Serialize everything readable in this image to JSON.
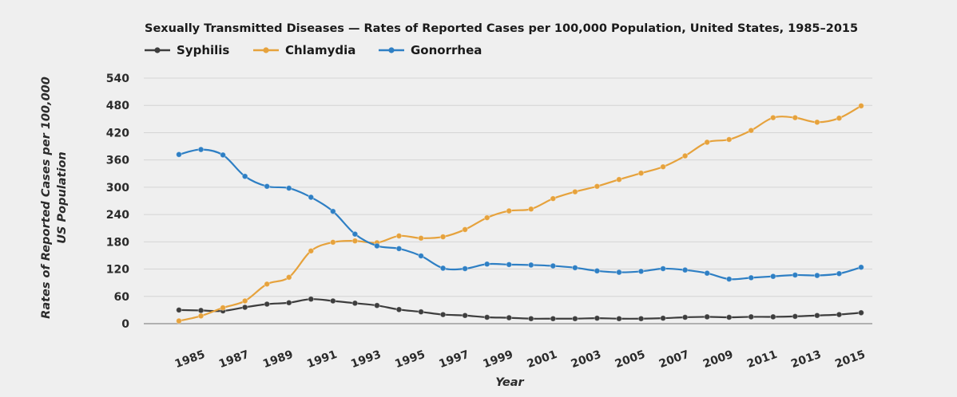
{
  "chart_data": {
    "type": "line",
    "title": "Sexually Transmitted Diseases — Rates of Reported Cases per 100,000 Population, United States, 1985–2015",
    "xlabel": "Year",
    "ylabel_line1": "Rates of Reported Cases per 100,000",
    "ylabel_line2": "US Population",
    "ylim": [
      0,
      540
    ],
    "yticks": [
      0,
      60,
      120,
      180,
      240,
      300,
      360,
      420,
      480,
      540
    ],
    "x": [
      1984,
      1985,
      1986,
      1987,
      1988,
      1989,
      1990,
      1991,
      1992,
      1993,
      1994,
      1995,
      1996,
      1997,
      1998,
      1999,
      2000,
      2001,
      2002,
      2003,
      2004,
      2005,
      2006,
      2007,
      2008,
      2009,
      2010,
      2011,
      2012,
      2013,
      2014,
      2015
    ],
    "xtick_labels": [
      "1985",
      "1987",
      "1989",
      "1991",
      "1993",
      "1995",
      "1997",
      "1999",
      "2001",
      "2003",
      "2005",
      "2007",
      "2009",
      "2011",
      "2013",
      "2015"
    ],
    "legend_position": "top-left",
    "series": [
      {
        "name": "Syphilis",
        "color": "#3d3d3d",
        "values": [
          30,
          29,
          28,
          36,
          43,
          46,
          54,
          50,
          45,
          40,
          31,
          26,
          20,
          18,
          14,
          13,
          11,
          11,
          11,
          12,
          11,
          11,
          12,
          14,
          15,
          14,
          15,
          15,
          16,
          18,
          20,
          24
        ]
      },
      {
        "name": "Chlamydia",
        "color": "#e6a23c",
        "values": [
          6,
          17,
          35,
          50,
          87,
          102,
          160,
          179,
          182,
          178,
          193,
          188,
          191,
          207,
          233,
          248,
          252,
          275,
          290,
          302,
          317,
          331,
          345,
          369,
          399,
          405,
          425,
          453,
          453,
          443,
          452,
          479
        ]
      },
      {
        "name": "Gonorrhea",
        "color": "#2e7fc4",
        "values": [
          372,
          383,
          371,
          324,
          302,
          298,
          278,
          247,
          197,
          171,
          165,
          149,
          122,
          121,
          131,
          130,
          129,
          127,
          123,
          116,
          113,
          115,
          121,
          118,
          111,
          98,
          101,
          104,
          107,
          106,
          110,
          124
        ]
      }
    ]
  }
}
